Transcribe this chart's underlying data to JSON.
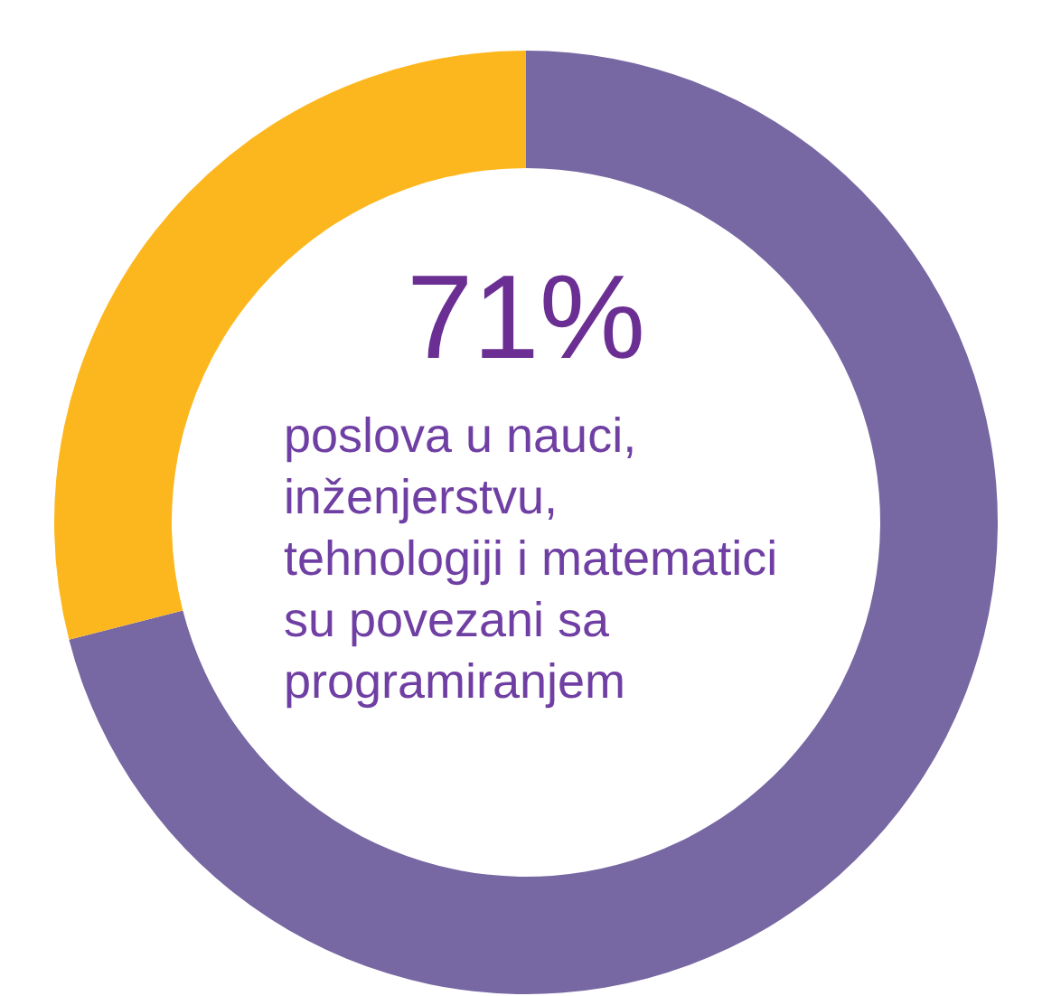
{
  "chart_data": {
    "type": "donut",
    "categories": [
      null,
      null
    ],
    "values": [
      71,
      29
    ],
    "colors": [
      "#7767a2",
      "#fdb71e"
    ],
    "value_labels": [
      "71%",
      null
    ],
    "annotations": [
      "poslova u nauci,\ninženjerstvu,\ntehnologiji i matematici\nsu povezani sa\nprogramiranjem"
    ]
  }
}
